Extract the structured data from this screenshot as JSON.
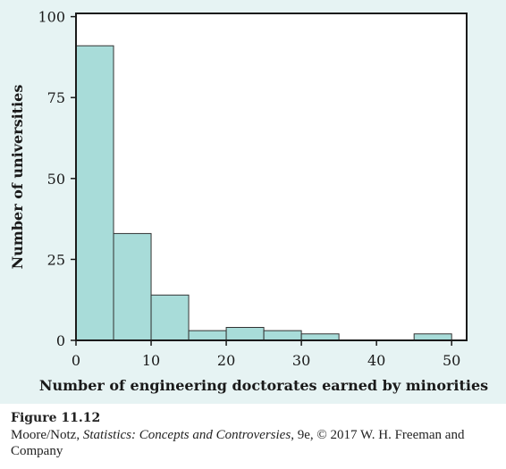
{
  "chart_data": {
    "type": "bar",
    "subtype": "histogram",
    "bin_edges": [
      0,
      5,
      10,
      15,
      20,
      25,
      30,
      35,
      40,
      45,
      50
    ],
    "values": [
      91,
      33,
      14,
      3,
      4,
      3,
      2,
      0,
      0,
      2
    ],
    "xlabel": "Number of engineering doctorates earned by minorities",
    "ylabel": "Number of universities",
    "xlim": [
      0,
      52
    ],
    "ylim": [
      0,
      101
    ],
    "x_ticks": [
      "0",
      "10",
      "20",
      "30",
      "40",
      "50"
    ],
    "y_ticks": [
      "0",
      "25",
      "50",
      "75",
      "100"
    ],
    "grid": false,
    "colors": {
      "bar_fill": "#a8dcd9",
      "bar_stroke": "#333333",
      "axis": "#1a1a1a",
      "panel": "#e6f3f3"
    }
  },
  "caption": {
    "figure_label": "Figure 11.12",
    "credit_prefix": "Moore/Notz, ",
    "credit_title": "Statistics: Concepts and Controversies",
    "credit_suffix": ", 9e, © 2017 W. H. Freeman and Company"
  }
}
